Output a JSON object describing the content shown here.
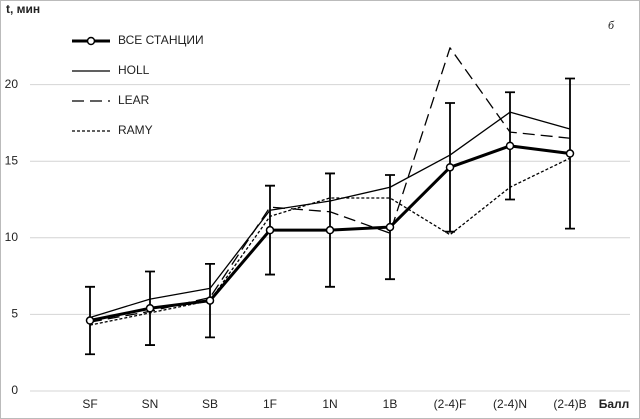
{
  "chart_data": {
    "type": "line",
    "y_label": "t, мин",
    "x_label": "Балл",
    "annotation": "б",
    "categories": [
      "SF",
      "SN",
      "SB",
      "1F",
      "1N",
      "1B",
      "(2-4)F",
      "(2-4)N",
      "(2-4)B"
    ],
    "series": [
      {
        "name": "ВСЕ СТАНЦИИ",
        "color": "#000000",
        "line_style": "solid-bold",
        "markers": true,
        "values": [
          4.6,
          5.4,
          5.9,
          10.5,
          10.5,
          10.7,
          14.6,
          16.0,
          15.5
        ],
        "errors": [
          2.2,
          2.4,
          2.4,
          2.9,
          3.7,
          3.4,
          4.2,
          3.5,
          4.9
        ]
      },
      {
        "name": "HOLL",
        "color": "#000000",
        "line_style": "solid",
        "values": [
          4.8,
          6.0,
          6.7,
          11.8,
          12.4,
          13.3,
          15.4,
          18.2,
          17.1
        ]
      },
      {
        "name": "LEAR",
        "color": "#000000",
        "line_style": "dashed",
        "values": [
          4.5,
          5.2,
          6.1,
          12.0,
          11.7,
          10.3,
          22.4,
          16.9,
          16.5
        ]
      },
      {
        "name": "RAMY",
        "color": "#000000",
        "line_style": "dotted",
        "values": [
          4.3,
          5.1,
          5.9,
          11.4,
          12.6,
          12.6,
          10.2,
          13.3,
          15.2
        ]
      }
    ],
    "ylim": [
      0,
      25
    ],
    "yticks": [
      0,
      5,
      10,
      15,
      20
    ],
    "grid": true
  }
}
